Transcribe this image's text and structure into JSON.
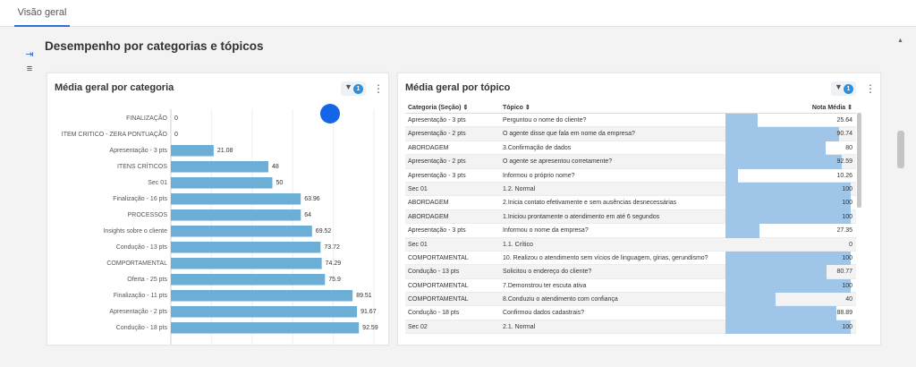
{
  "tab": {
    "label": "Visão geral"
  },
  "section": {
    "title": "Desempenho por categorias e tópicos"
  },
  "left_panel": {
    "title": "Média geral por categoria",
    "filter_count": "1"
  },
  "right_panel": {
    "title": "Média geral por tópico",
    "filter_count": "1",
    "headers": {
      "categoria": "Categoria (Seção)",
      "topico": "Tópico",
      "nota": "Nota Média"
    },
    "rows": [
      {
        "categoria": "Apresentação - 3 pts",
        "topico": "Perguntou o nome do cliente?",
        "nota": 25.64,
        "label": "25.64"
      },
      {
        "categoria": "Apresentação - 2 pts",
        "topico": "O agente disse que fala em nome da empresa?",
        "nota": 90.74,
        "label": "90.74"
      },
      {
        "categoria": "ABORDAGEM",
        "topico": "3.Confirmação de dados",
        "nota": 80,
        "label": "80"
      },
      {
        "categoria": "Apresentação - 2 pts",
        "topico": "O agente se apresentou corretamente?",
        "nota": 92.59,
        "label": "92.59"
      },
      {
        "categoria": "Apresentação - 3 pts",
        "topico": "Informou o próprio nome?",
        "nota": 10.26,
        "label": "10.26"
      },
      {
        "categoria": "Sec 01",
        "topico": "1.2. Normal",
        "nota": 100,
        "label": "100"
      },
      {
        "categoria": "ABORDAGEM",
        "topico": "2.Inicia contato efetivamente e sem ausências desnecessárias",
        "nota": 100,
        "label": "100"
      },
      {
        "categoria": "ABORDAGEM",
        "topico": "1.Iniciou prontamente o atendimento em até 6 segundos",
        "nota": 100,
        "label": "100"
      },
      {
        "categoria": "Apresentação - 3 pts",
        "topico": "Informou o nome da empresa?",
        "nota": 27.35,
        "label": "27.35"
      },
      {
        "categoria": "Sec 01",
        "topico": "1.1. Crítico",
        "nota": 0,
        "label": "0"
      },
      {
        "categoria": "COMPORTAMENTAL",
        "topico": "10. Realizou o atendimento sem vícios de linguagem, gírias, gerundismo?",
        "nota": 100,
        "label": "100"
      },
      {
        "categoria": "Condução - 13 pts",
        "topico": "Solicitou o endereço do cliente?",
        "nota": 80.77,
        "label": "80.77"
      },
      {
        "categoria": "COMPORTAMENTAL",
        "topico": "7.Demonstrou ter escuta ativa",
        "nota": 100,
        "label": "100"
      },
      {
        "categoria": "COMPORTAMENTAL",
        "topico": "8.Conduziu o atendimento com confiança",
        "nota": 40,
        "label": "40"
      },
      {
        "categoria": "Condução - 18 pts",
        "topico": "Confirmou dados cadastrais?",
        "nota": 88.89,
        "label": "88.89"
      },
      {
        "categoria": "Sec 02",
        "topico": "2.1. Normal",
        "nota": 100,
        "label": "100"
      }
    ]
  },
  "chart_data": {
    "type": "bar",
    "orientation": "horizontal",
    "categories": [
      "FINALIZAÇÃO",
      "ITEM CRITICO - ZERA PONTUAÇÃO",
      "Apresentação - 3 pts",
      "ITENS CRÍTICOS",
      "Sec 01",
      "Finalização - 16 pts",
      "PROCESSOS",
      "Insights sobre o cliente",
      "Condução - 13 pts",
      "COMPORTAMENTAL",
      "Oferta - 25 pts",
      "Finalização - 11 pts",
      "Apresentação - 2 pts",
      "Condução - 18 pts"
    ],
    "values": [
      0,
      0,
      21.08,
      48,
      50,
      63.96,
      64,
      69.52,
      73.72,
      74.29,
      75.9,
      89.51,
      91.67,
      92.59
    ],
    "labels": [
      "0",
      "0",
      "21.08",
      "48",
      "50",
      "63.96",
      "64",
      "69.52",
      "73.72",
      "74.29",
      "75.9",
      "89.51",
      "91.67",
      "92.59"
    ],
    "xlim": [
      0,
      100
    ],
    "grid": true,
    "color": "#6baed6"
  }
}
